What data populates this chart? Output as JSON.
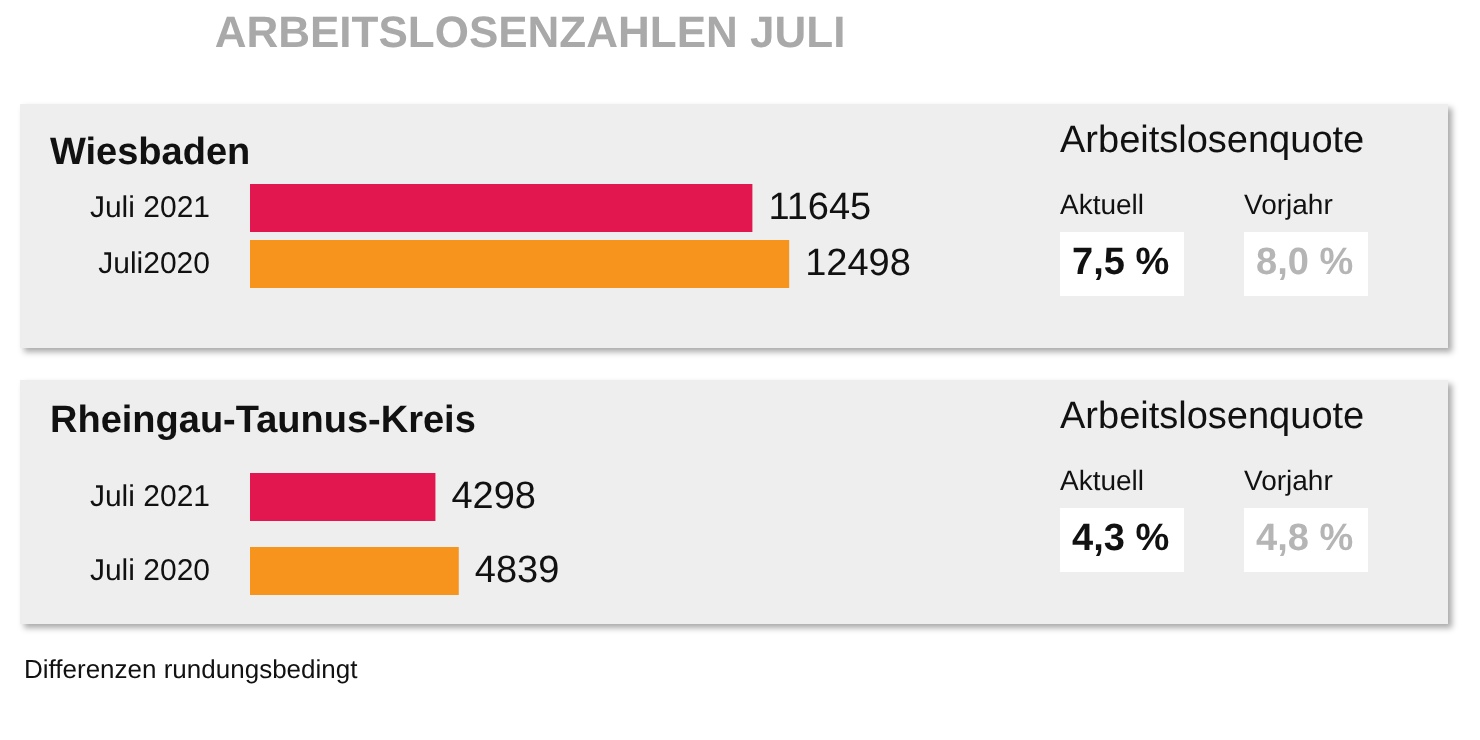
{
  "chart_data": [
    {
      "type": "bar",
      "title": "ARBEITSLOSENZAHLEN JULI",
      "subtitle": "Wiesbaden",
      "orientation": "horizontal",
      "categories": [
        "Juli 2021",
        "Juli2020"
      ],
      "values": [
        11645,
        12498
      ],
      "colors": [
        "#e2174f",
        "#f7941d"
      ],
      "data_labels": true,
      "tick_labels": "y"
    },
    {
      "type": "other",
      "title": "Arbeitslosenquote",
      "annotations": [
        "Aktuell",
        "Vorjahr",
        "7,5 %",
        "8,0 %"
      ]
    },
    {
      "type": "bar",
      "title": "Rheingau-Taunus-Kreis",
      "orientation": "horizontal",
      "categories": [
        "Juli 2021",
        "Juli 2020"
      ],
      "values": [
        4298,
        4839
      ],
      "colors": [
        "#e2174f",
        "#f7941d"
      ],
      "data_labels": true,
      "tick_labels": "y",
      "annotations": [
        "Differenzen rundungsbedingt"
      ]
    },
    {
      "type": "other",
      "title": "Arbeitslosenquote",
      "annotations": [
        "Aktuell",
        "Vorjahr",
        "4,3 %",
        "4,8 %"
      ]
    }
  ]
}
